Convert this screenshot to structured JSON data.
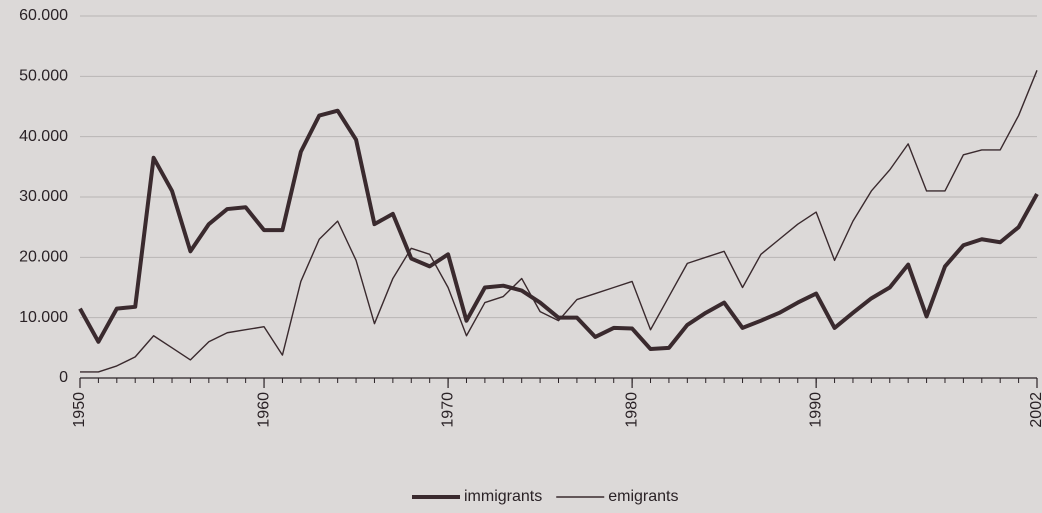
{
  "chart_data": {
    "type": "line",
    "x": [
      1950,
      1951,
      1952,
      1953,
      1954,
      1955,
      1956,
      1957,
      1958,
      1959,
      1960,
      1961,
      1962,
      1963,
      1964,
      1965,
      1966,
      1967,
      1968,
      1969,
      1970,
      1971,
      1972,
      1973,
      1974,
      1975,
      1976,
      1977,
      1978,
      1979,
      1980,
      1981,
      1982,
      1983,
      1984,
      1985,
      1986,
      1987,
      1988,
      1989,
      1990,
      1991,
      1992,
      1993,
      1994,
      1995,
      1996,
      1997,
      1998,
      1999,
      2000,
      2001,
      2002
    ],
    "series": [
      {
        "name": "immigrants",
        "color": "#3a2a2e",
        "line_width": 4,
        "values": [
          11500,
          6000,
          11500,
          11800,
          36500,
          31000,
          21000,
          25500,
          28000,
          28300,
          24500,
          24500,
          37500,
          43500,
          44300,
          39500,
          25500,
          27200,
          19800,
          18500,
          20500,
          9500,
          15000,
          15300,
          14500,
          12500,
          10000,
          10000,
          6800,
          8300,
          8200,
          4800,
          5000,
          8800,
          10800,
          12500,
          8300,
          9500,
          10800,
          12500,
          14000,
          8300,
          10800,
          13200,
          15000,
          18800,
          10200,
          18500,
          22000,
          23000,
          22500,
          25000,
          30500
        ]
      },
      {
        "name": "emigrants",
        "color": "#3a2a2e",
        "line_width": 1.4,
        "values": [
          1000,
          1000,
          2000,
          3500,
          7000,
          5000,
          3000,
          6000,
          7500,
          8000,
          8500,
          3800,
          16000,
          23000,
          26000,
          19500,
          9000,
          16500,
          21500,
          20500,
          15000,
          7000,
          12500,
          13500,
          16500,
          11000,
          9500,
          13000,
          14000,
          15000,
          16000,
          8000,
          13500,
          19000,
          20000,
          21000,
          15000,
          20500,
          23000,
          25500,
          27500,
          19500,
          26000,
          31000,
          34500,
          38800,
          31000,
          31000,
          37000,
          37800,
          37800,
          43500,
          51000
        ]
      }
    ],
    "xlim": [
      1950,
      2002
    ],
    "xticks": [
      1950,
      1960,
      1970,
      1980,
      1990,
      2002
    ],
    "ylim": [
      0,
      60000
    ],
    "yticks": [
      0,
      {
        "value": 10000,
        "label": "10.000"
      },
      {
        "value": 20000,
        "label": "20.000"
      },
      {
        "value": 30000,
        "label": "30.000"
      },
      {
        "value": 40000,
        "label": "40.000"
      },
      {
        "value": 50000,
        "label": "50.000"
      },
      {
        "value": 60000,
        "label": "60.000"
      }
    ],
    "grid": true,
    "legend": "bottom"
  }
}
